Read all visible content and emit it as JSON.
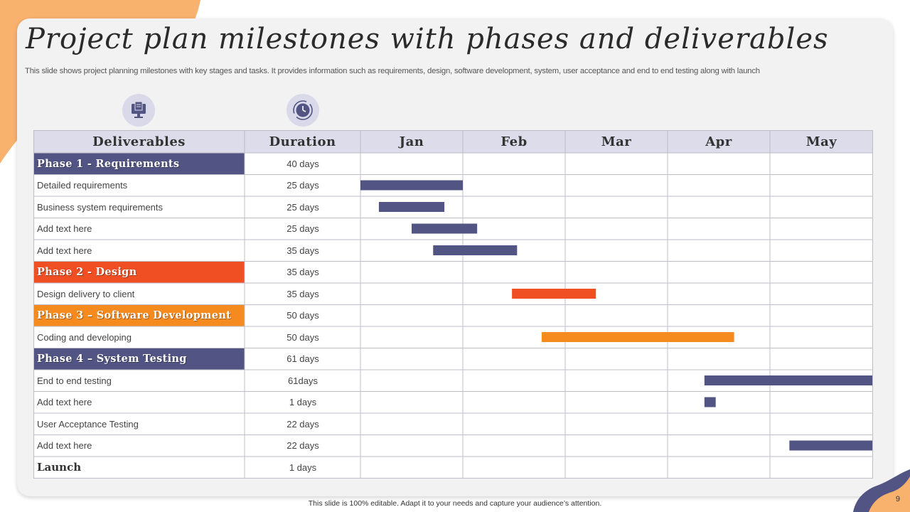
{
  "slide": {
    "title": "Project plan milestones with phases and deliverables",
    "subtitle": "This slide shows project planning milestones with key stages and tasks. It provides information such as requirements, design, software development, system, user acceptance and end to end testing along with launch",
    "footer": "This slide is 100% editable. Adapt it to your needs and capture your audience’s attention.",
    "page_number": "9"
  },
  "icons": {
    "deliverables": "monitor-document-icon",
    "duration": "clock-cycle-icon"
  },
  "colors": {
    "phase_blue": "#525583",
    "phase_red": "#f04e23",
    "phase_orange": "#f58a1f",
    "header_bg": "#dcdcea",
    "accent_blob": "#f9b16e"
  },
  "chart_data": {
    "type": "table",
    "columns": [
      "Deliverables",
      "Duration",
      "Jan",
      "Feb",
      "Mar",
      "Apr",
      "May"
    ],
    "months": [
      "Jan",
      "Feb",
      "Mar",
      "Apr",
      "May"
    ],
    "rows": [
      {
        "label": "Phase 1 - Requirements",
        "duration": "40 days",
        "kind": "phase",
        "color": "#525583"
      },
      {
        "label": "Detailed requirements",
        "duration": "25 days",
        "bar": [
          0.0,
          1.0
        ],
        "color": "#525583"
      },
      {
        "label": "Business system requirements",
        "duration": "25 days",
        "bar": [
          0.18,
          0.82
        ],
        "color": "#525583"
      },
      {
        "label": "Add text here",
        "duration": "25 days",
        "bar": [
          0.5,
          1.14
        ],
        "color": "#525583"
      },
      {
        "label": "Add text here",
        "duration": "35 days",
        "bar": [
          0.71,
          1.53
        ],
        "color": "#525583"
      },
      {
        "label": "Phase 2 - Design",
        "duration": "35 days",
        "kind": "phase",
        "color": "#f04e23"
      },
      {
        "label": "Design delivery to client",
        "duration": "35 days",
        "bar": [
          1.48,
          2.3
        ],
        "color": "#f04e23"
      },
      {
        "label": "Phase 3 – Software Development",
        "duration": "50 days",
        "kind": "phase",
        "color": "#f58a1f"
      },
      {
        "label": "Coding and developing",
        "duration": "50 days",
        "bar": [
          1.77,
          3.65
        ],
        "color": "#f58a1f"
      },
      {
        "label": "Phase 4 – System Testing",
        "duration": "61 days",
        "kind": "phase",
        "color": "#525583"
      },
      {
        "label": "End to end testing",
        "duration": "61days",
        "bar": [
          3.36,
          5.0
        ],
        "color": "#525583"
      },
      {
        "label": "Add text here",
        "duration": "1 days",
        "bar": [
          3.36,
          3.47
        ],
        "color": "#525583"
      },
      {
        "label": "User Acceptance Testing",
        "duration": "22 days",
        "color": "#525583"
      },
      {
        "label": "Add text here",
        "duration": "22 days",
        "bar": [
          4.19,
          5.0
        ],
        "color": "#525583"
      },
      {
        "label": "Launch",
        "duration": "1 days",
        "kind": "launch"
      }
    ]
  }
}
